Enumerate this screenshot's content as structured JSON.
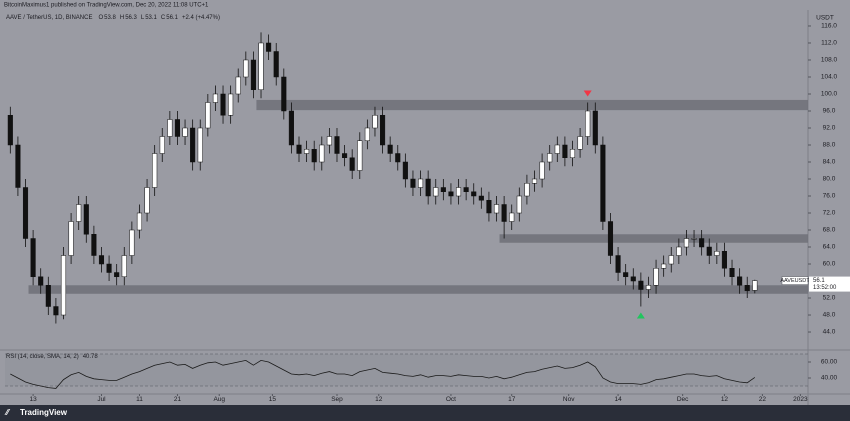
{
  "header": {
    "publisher": "BitcoinMaximus1 published on TradingView.com, Dec 20, 2022 11:08 UTC+1",
    "brand": "TradingView"
  },
  "chart_data": [
    {
      "type": "candlestick",
      "title": "AAVE / TetherUS, 1D, BINANCE",
      "legend_labels": [
        "O",
        "H",
        "L",
        "C"
      ],
      "change": "+2.4 (+4.47%)",
      "currency": "USDT",
      "symbol": "AAVEUSDT",
      "countdown": "13:52:00",
      "up_color": "#ffffff",
      "down_color": "#111111",
      "zone_color": "#6e7078",
      "open": [
        95,
        88,
        78,
        66,
        57,
        55,
        50,
        48,
        62,
        70,
        74,
        67,
        62,
        60,
        58,
        57,
        62,
        68,
        72,
        78,
        86,
        90,
        94,
        90,
        92,
        84,
        92,
        98,
        100,
        95,
        100,
        104,
        108,
        101,
        112,
        110,
        104,
        96,
        88,
        86,
        87,
        84,
        88,
        90,
        86,
        85,
        82,
        89,
        92,
        95,
        88,
        86,
        84,
        80,
        78,
        80,
        76,
        78,
        77,
        76,
        78,
        77,
        76,
        75,
        72,
        74,
        70,
        72,
        76,
        79,
        80,
        84,
        86,
        88,
        85,
        87,
        90,
        96,
        88,
        70,
        62,
        58,
        57,
        56,
        54,
        55,
        59,
        60,
        62,
        64,
        66,
        66,
        64,
        62,
        63,
        59,
        57,
        55,
        53.8
      ],
      "high": [
        97,
        90,
        80,
        68,
        59,
        57,
        52,
        64,
        72,
        76,
        76,
        69,
        64,
        62,
        60,
        64,
        70,
        74,
        80,
        88,
        92,
        96,
        96,
        94,
        94,
        94,
        100,
        102,
        102,
        102,
        106,
        110,
        110,
        114.5,
        114,
        112,
        106,
        98,
        90,
        89,
        89,
        90,
        92,
        92,
        88,
        87,
        91,
        94,
        97,
        97,
        90,
        88,
        86,
        82,
        82,
        82,
        80,
        80,
        79,
        80,
        80,
        79,
        78,
        77,
        76,
        76,
        74,
        78,
        81,
        82,
        86,
        88,
        90,
        90,
        89,
        92,
        98,
        98,
        90,
        72,
        64,
        60,
        59,
        58,
        57,
        61,
        62,
        64,
        66,
        68,
        68,
        68,
        66,
        65,
        65,
        61,
        59,
        57,
        56.3
      ],
      "low": [
        86,
        76,
        64,
        55,
        53,
        48,
        46,
        47,
        60,
        68,
        65,
        60,
        58,
        56,
        55,
        55,
        60,
        66,
        70,
        76,
        84,
        88,
        88,
        88,
        82,
        82,
        90,
        96,
        93,
        93,
        98,
        102,
        99,
        99,
        108,
        102,
        94,
        86,
        84,
        84,
        82,
        82,
        86,
        84,
        83,
        80,
        80,
        87,
        90,
        86,
        84,
        82,
        78,
        76,
        76,
        74,
        74,
        75,
        74,
        74,
        75,
        74,
        73,
        70,
        70,
        66,
        68,
        70,
        74,
        77,
        78,
        82,
        84,
        83,
        83,
        85,
        88,
        86,
        68,
        60,
        56,
        55,
        54,
        50,
        52,
        53,
        57,
        58,
        60,
        62,
        64,
        62,
        60,
        60,
        57,
        55,
        53,
        52,
        53.1
      ],
      "close": [
        88,
        78,
        66,
        57,
        55,
        50,
        48,
        62,
        70,
        74,
        67,
        62,
        60,
        58,
        57,
        62,
        68,
        72,
        78,
        86,
        90,
        94,
        90,
        92,
        84,
        92,
        98,
        100,
        95,
        100,
        104,
        108,
        101,
        112,
        110,
        104,
        96,
        88,
        86,
        87,
        84,
        88,
        90,
        86,
        85,
        82,
        89,
        92,
        95,
        88,
        86,
        84,
        80,
        78,
        80,
        76,
        78,
        77,
        76,
        78,
        77,
        76,
        75,
        72,
        74,
        70,
        72,
        76,
        79,
        80,
        84,
        86,
        88,
        85,
        87,
        90,
        96,
        88,
        70,
        62,
        58,
        57,
        56,
        54,
        55,
        59,
        60,
        62,
        64,
        66,
        66,
        64,
        62,
        63,
        59,
        57,
        55,
        53.7,
        56.1
      ],
      "zones": [
        {
          "start": 33,
          "low": 96.2,
          "high": 98.6
        },
        {
          "start": 65,
          "low": 65,
          "high": 67
        },
        {
          "start": 3,
          "low": 53,
          "high": 55
        }
      ],
      "signals": [
        {
          "index": 76,
          "direction": "down",
          "color": "#f23645"
        },
        {
          "index": 83,
          "direction": "up",
          "color": "#22c55e"
        }
      ],
      "xlim": [
        -0.7,
        105
      ],
      "xticks": [
        {
          "value": 3,
          "label": "13"
        },
        {
          "value": 12,
          "label": "Jul"
        },
        {
          "value": 17,
          "label": "11"
        },
        {
          "value": 22,
          "label": "21"
        },
        {
          "value": 27.5,
          "label": "Aug"
        },
        {
          "value": 34.5,
          "label": "15"
        },
        {
          "value": 43,
          "label": "Sep"
        },
        {
          "value": 48.5,
          "label": "12"
        },
        {
          "value": 58,
          "label": "Oct"
        },
        {
          "value": 66,
          "label": "17"
        },
        {
          "value": 73.5,
          "label": "Nov"
        },
        {
          "value": 80,
          "label": "14"
        },
        {
          "value": 88.5,
          "label": "Dec"
        },
        {
          "value": 94,
          "label": "12"
        },
        {
          "value": 99,
          "label": "22"
        },
        {
          "value": 104,
          "label": "2023"
        }
      ],
      "ylim": [
        40.24,
        119.76
      ],
      "yticks": [
        {
          "value": 44,
          "label": "44.0"
        },
        {
          "value": 48,
          "label": "48.0"
        },
        {
          "value": 52,
          "label": "52.0"
        },
        {
          "value": 56,
          "label": "56.0"
        },
        {
          "value": 60,
          "label": "60.0"
        },
        {
          "value": 64,
          "label": "64.0"
        },
        {
          "value": 68,
          "label": "68.0"
        },
        {
          "value": 72,
          "label": "72.0"
        },
        {
          "value": 76,
          "label": "76.0"
        },
        {
          "value": 80,
          "label": "80.0"
        },
        {
          "value": 84,
          "label": "84.0"
        },
        {
          "value": 88,
          "label": "88.0"
        },
        {
          "value": 92,
          "label": "92.0"
        },
        {
          "value": 96,
          "label": "96.0"
        },
        {
          "value": 100,
          "label": "100.0"
        },
        {
          "value": 104,
          "label": "104.0"
        },
        {
          "value": 108,
          "label": "108.0"
        },
        {
          "value": 112,
          "label": "112.0"
        },
        {
          "value": 116,
          "label": "116.0"
        }
      ]
    },
    {
      "type": "line",
      "title": "RSI (14, close, SMA, 14, 2)",
      "color": "#1a1a1a",
      "band_color": "#8a8c94",
      "values": [
        45,
        40,
        35,
        32,
        30,
        28,
        27,
        38,
        44,
        47,
        42,
        39,
        38,
        37,
        37,
        41,
        45,
        48,
        52,
        56,
        58,
        60,
        56,
        57,
        52,
        56,
        59,
        60,
        56,
        58,
        60,
        62,
        56,
        62,
        60,
        55,
        50,
        45,
        44,
        45,
        43,
        46,
        48,
        45,
        45,
        43,
        48,
        50,
        52,
        47,
        46,
        45,
        43,
        42,
        44,
        41,
        43,
        43,
        42,
        44,
        43,
        42,
        42,
        40,
        42,
        39,
        41,
        44,
        47,
        48,
        51,
        53,
        55,
        52,
        53,
        56,
        60,
        54,
        40,
        35,
        33,
        33,
        33,
        32,
        34,
        38,
        39,
        41,
        43,
        45,
        45,
        43,
        42,
        43,
        39,
        37,
        35,
        34,
        40.78
      ],
      "bands": [
        30,
        70
      ],
      "xlim": [
        -0.7,
        105
      ],
      "ylim": [
        22.5,
        72.5
      ],
      "yticks": [
        {
          "value": 40,
          "label": "40.00"
        },
        {
          "value": 60,
          "label": "60.00"
        }
      ]
    }
  ]
}
